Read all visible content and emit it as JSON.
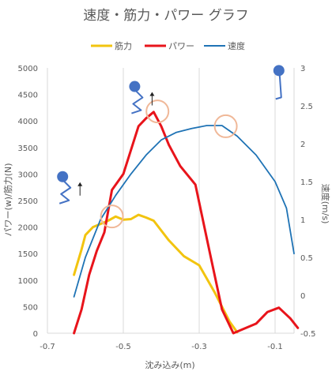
{
  "chart_data": {
    "type": "line",
    "title": "速度・筋力・パワー グラフ",
    "xlabel": "沈み込み(m)",
    "ylabel_left": "パワー(w)/筋力(N)",
    "ylabel_right": "速度(m/s)",
    "xlim": [
      -0.7,
      -0.05
    ],
    "ylim_left": [
      0,
      5000
    ],
    "ylim_right": [
      -0.5,
      3
    ],
    "x_ticks": [
      "-0.7",
      "-0.5",
      "-0.3",
      "-0.1"
    ],
    "y_ticks_left": [
      "0",
      "500",
      "1000",
      "1500",
      "2000",
      "2500",
      "3000",
      "3500",
      "4000",
      "4500",
      "5000"
    ],
    "y_ticks_right": [
      "-0.5",
      "0",
      "0.5",
      "1",
      "1.5",
      "2",
      "2.5",
      "3"
    ],
    "grid": "vertical",
    "legend_position": "top",
    "series": [
      {
        "name": "筋力",
        "color": "#F2C40F",
        "axis": "left",
        "points": [
          [
            -0.63,
            1100
          ],
          [
            -0.61,
            1580
          ],
          [
            -0.6,
            1850
          ],
          [
            -0.58,
            2000
          ],
          [
            -0.56,
            2060
          ],
          [
            -0.54,
            2120
          ],
          [
            -0.52,
            2200
          ],
          [
            -0.5,
            2140
          ],
          [
            -0.48,
            2150
          ],
          [
            -0.46,
            2230
          ],
          [
            -0.44,
            2180
          ],
          [
            -0.42,
            2120
          ],
          [
            -0.38,
            1750
          ],
          [
            -0.34,
            1450
          ],
          [
            -0.3,
            1280
          ],
          [
            -0.26,
            780
          ],
          [
            -0.22,
            220
          ],
          [
            -0.2,
            20
          ]
        ]
      },
      {
        "name": "パワー",
        "color": "#E8141B",
        "axis": "left",
        "points": [
          [
            -0.63,
            0
          ],
          [
            -0.61,
            450
          ],
          [
            -0.59,
            1100
          ],
          [
            -0.57,
            1550
          ],
          [
            -0.55,
            1900
          ],
          [
            -0.53,
            2700
          ],
          [
            -0.5,
            3000
          ],
          [
            -0.48,
            3450
          ],
          [
            -0.46,
            3900
          ],
          [
            -0.44,
            4050
          ],
          [
            -0.42,
            4170
          ],
          [
            -0.4,
            3900
          ],
          [
            -0.38,
            3550
          ],
          [
            -0.35,
            3150
          ],
          [
            -0.31,
            2800
          ],
          [
            -0.27,
            1450
          ],
          [
            -0.24,
            450
          ],
          [
            -0.21,
            0
          ],
          [
            -0.15,
            180
          ],
          [
            -0.12,
            400
          ],
          [
            -0.09,
            480
          ],
          [
            -0.06,
            280
          ],
          [
            -0.04,
            100
          ]
        ]
      },
      {
        "name": "速度",
        "color": "#1F73B5",
        "axis": "right",
        "points": [
          [
            -0.63,
            -0.02
          ],
          [
            -0.6,
            0.5
          ],
          [
            -0.56,
            1.0
          ],
          [
            -0.52,
            1.32
          ],
          [
            -0.48,
            1.6
          ],
          [
            -0.44,
            1.85
          ],
          [
            -0.4,
            2.05
          ],
          [
            -0.36,
            2.15
          ],
          [
            -0.32,
            2.2
          ],
          [
            -0.28,
            2.24
          ],
          [
            -0.24,
            2.24
          ],
          [
            -0.2,
            2.1
          ],
          [
            -0.15,
            1.85
          ],
          [
            -0.1,
            1.5
          ],
          [
            -0.07,
            1.15
          ],
          [
            -0.05,
            0.55
          ]
        ]
      }
    ]
  },
  "legend": [
    {
      "label": "筋力",
      "color": "#F2C40F"
    },
    {
      "label": "パワー",
      "color": "#E8141B"
    },
    {
      "label": "速度",
      "color": "#1F73B5"
    }
  ],
  "annotations": {
    "circles": [
      {
        "x": -0.53,
        "y_left": 2200
      },
      {
        "x": -0.41,
        "y_left": 4180
      },
      {
        "x": -0.23,
        "y_left": 3900
      }
    ],
    "circle_color": "#F0B898",
    "figures": [
      {
        "name": "squat-figure-bottom",
        "x": -0.66,
        "y_left": 2950
      },
      {
        "name": "squat-figure-mid",
        "x": -0.47,
        "y_left": 4650
      },
      {
        "name": "standing-figure-top",
        "x": -0.09,
        "y_left": 4950
      }
    ],
    "figure_color": "#4472C4"
  }
}
